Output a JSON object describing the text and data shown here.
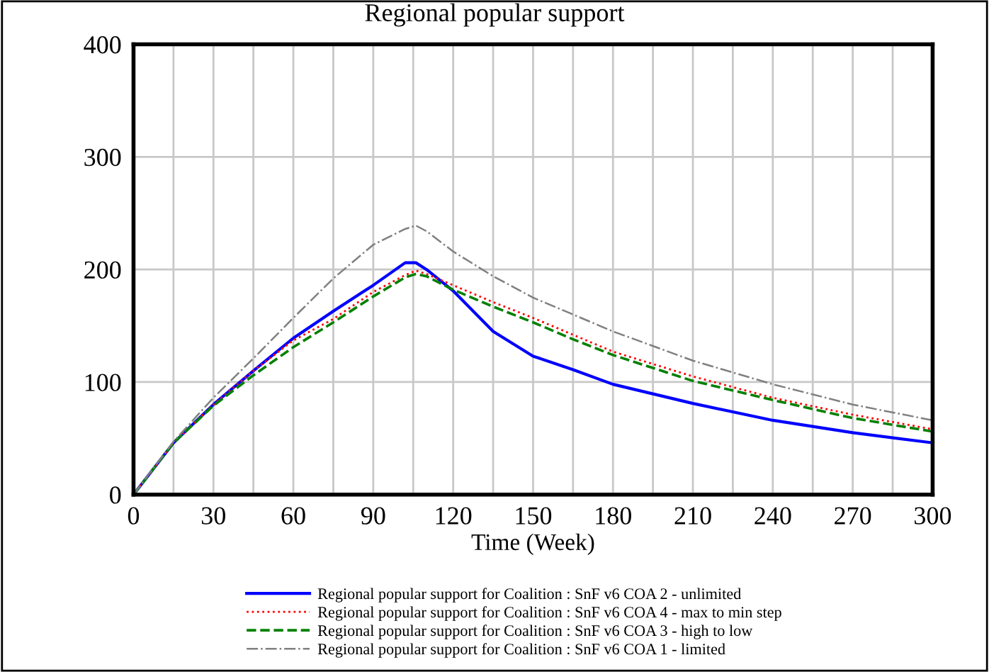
{
  "chart_data": {
    "type": "line",
    "title": "Regional popular support",
    "xlabel": "Time (Week)",
    "x": [
      0,
      15,
      30,
      45,
      60,
      75,
      90,
      102,
      106,
      110,
      120,
      135,
      150,
      165,
      180,
      210,
      240,
      270,
      300
    ],
    "series": [
      {
        "name": "Regional popular support for Coalition : SnF v6 COA 2 - unlimited",
        "color": "#0000ff",
        "line_style": "solid",
        "values": [
          0,
          46,
          80,
          110,
          139,
          163,
          186,
          206,
          206,
          200,
          181,
          145,
          123,
          111,
          98,
          81,
          66,
          55,
          46
        ]
      },
      {
        "name": "Regional popular support for Coalition : SnF v6 COA 4 - max to min step",
        "color": "#ff0000",
        "line_style": "dotted",
        "values": [
          0,
          46,
          80,
          110,
          137,
          156,
          180,
          195,
          199,
          196,
          186,
          171,
          157,
          142,
          127,
          105,
          86,
          71,
          58
        ]
      },
      {
        "name": "Regional popular support for Coalition : SnF v6 COA 3 - high to low",
        "color": "#008000",
        "line_style": "dashed",
        "values": [
          0,
          46,
          79,
          106,
          131,
          153,
          176,
          193,
          196,
          194,
          182,
          167,
          153,
          138,
          124,
          101,
          84,
          68,
          56
        ]
      },
      {
        "name": "Regional popular support for Coalition : SnF v6 COA 1 - limited",
        "color": "#808080",
        "line_style": "dashdot",
        "values": [
          0,
          47,
          86,
          121,
          157,
          192,
          222,
          236,
          239,
          234,
          216,
          194,
          175,
          160,
          145,
          119,
          98,
          80,
          66
        ]
      }
    ],
    "xlim": [
      0,
      300
    ],
    "ylim": [
      0,
      400
    ],
    "xticks": [
      0,
      {
        "value": 15,
        "label": null
      },
      30,
      {
        "value": 45,
        "label": null
      },
      60,
      {
        "value": 75,
        "label": null
      },
      90,
      {
        "value": 105,
        "label": null
      },
      120,
      {
        "value": 135,
        "label": null
      },
      150,
      {
        "value": 165,
        "label": null
      },
      180,
      {
        "value": 195,
        "label": null
      },
      210,
      {
        "value": 225,
        "label": null
      },
      240,
      {
        "value": 255,
        "label": null
      },
      270,
      {
        "value": 285,
        "label": null
      },
      300
    ],
    "yticks": [
      0,
      100,
      200,
      300,
      400
    ],
    "grid": true,
    "legend": "bottom"
  }
}
